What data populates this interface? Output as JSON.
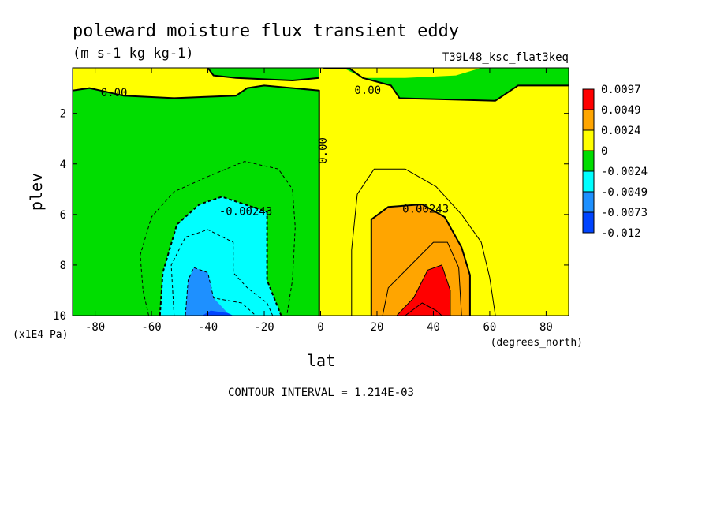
{
  "chart_data": {
    "type": "heatmap",
    "title": "poleward moisture flux transient eddy",
    "units": "(m s-1 kg kg-1)",
    "run_id": "T39L48_ksc_flat3keq",
    "xlabel": "lat",
    "x_units": "(degrees_north)",
    "ylabel": "plev",
    "y_units": "(x1E4 Pa)",
    "xlim": [
      -88,
      88
    ],
    "ylim": [
      10,
      0.2
    ],
    "x_ticks": [
      "-80",
      "-60",
      "-40",
      "-20",
      "0",
      "20",
      "40",
      "60",
      "80"
    ],
    "x_tick_values": [
      -80,
      -60,
      -40,
      -20,
      0,
      20,
      40,
      60,
      80
    ],
    "y_ticks": [
      "2",
      "4",
      "6",
      "8",
      "10"
    ],
    "y_tick_values": [
      2,
      4,
      6,
      8,
      10
    ],
    "contour_interval_text": "CONTOUR INTERVAL = 1.214E-03",
    "contour_labels": [
      {
        "text": "0.00",
        "lat": -78,
        "plev": 1.2
      },
      {
        "text": "0.00",
        "lat": 12,
        "plev": 1.1
      },
      {
        "text": "0.00",
        "lat": 1,
        "plev": 4.0,
        "rotate": true
      },
      {
        "text": "-0.00243",
        "lat": -36,
        "plev": 5.9
      },
      {
        "text": "0.00243",
        "lat": 29,
        "plev": 5.8
      }
    ],
    "colorbar": [
      {
        "label": "0.0097",
        "color": "#ff0000"
      },
      {
        "label": "0.0049",
        "color": "#ffa500"
      },
      {
        "label": "0.0024",
        "color": "#ffff00"
      },
      {
        "label": "0",
        "color": "#00dd00"
      },
      {
        "label": "-0.0024",
        "color": "#00ffff"
      },
      {
        "label": "-0.0049",
        "color": "#1e90ff"
      },
      {
        "label": "-0.0073",
        "color": "#0044ff"
      },
      {
        "label": "-0.012",
        "color": null
      }
    ],
    "regions": [
      {
        "name": "yellow-top-left",
        "color": "#ffff00",
        "poly": [
          [
            -88,
            0.2
          ],
          [
            -40,
            0.2
          ],
          [
            -38,
            0.5
          ],
          [
            -30,
            0.6
          ],
          [
            -10,
            0.7
          ],
          [
            -0.5,
            0.6
          ],
          [
            -0.5,
            1.1
          ],
          [
            -10,
            1.0
          ],
          [
            -20,
            0.9
          ],
          [
            -26,
            1.0
          ],
          [
            -30,
            1.3
          ],
          [
            -52,
            1.4
          ],
          [
            -70,
            1.3
          ],
          [
            -82,
            1.0
          ],
          [
            -88,
            1.1
          ]
        ]
      },
      {
        "name": "green-south",
        "color": "#00dd00",
        "poly": [
          [
            -88,
            1.1
          ],
          [
            -82,
            1.0
          ],
          [
            -70,
            1.3
          ],
          [
            -52,
            1.4
          ],
          [
            -30,
            1.3
          ],
          [
            -26,
            1.0
          ],
          [
            -20,
            0.9
          ],
          [
            -10,
            1.0
          ],
          [
            -0.5,
            1.1
          ],
          [
            -0.5,
            10
          ],
          [
            -88,
            10
          ]
        ]
      },
      {
        "name": "green-top-middle",
        "color": "#00dd00",
        "poly": [
          [
            -40,
            0.2
          ],
          [
            -0.5,
            0.2
          ],
          [
            -0.5,
            0.6
          ],
          [
            -10,
            0.7
          ],
          [
            -30,
            0.6
          ],
          [
            -38,
            0.5
          ]
        ]
      },
      {
        "name": "yellow-north",
        "color": "#ffff00",
        "poly": [
          [
            -0.5,
            0.2
          ],
          [
            88,
            0.2
          ],
          [
            88,
            10
          ],
          [
            -0.5,
            10
          ]
        ]
      },
      {
        "name": "green-top-north",
        "color": "#00dd00",
        "poly": [
          [
            1,
            0.2
          ],
          [
            10,
            0.2
          ],
          [
            15,
            0.6
          ],
          [
            25,
            0.9
          ],
          [
            28,
            1.4
          ],
          [
            62,
            1.5
          ],
          [
            70,
            0.9
          ],
          [
            88,
            0.9
          ],
          [
            88,
            0.2
          ],
          [
            57,
            0.2
          ],
          [
            48,
            0.5
          ],
          [
            30,
            0.6
          ],
          [
            15,
            0.6
          ],
          [
            8,
            0.2
          ]
        ]
      },
      {
        "name": "cyan-south",
        "color": "#00ffff",
        "poly": [
          [
            -57,
            10
          ],
          [
            -56,
            8.3
          ],
          [
            -51,
            6.4
          ],
          [
            -43,
            5.6
          ],
          [
            -35,
            5.3
          ],
          [
            -19,
            5.9
          ],
          [
            -19,
            8.6
          ],
          [
            -14,
            10
          ]
        ]
      },
      {
        "name": "blue-south",
        "color": "#1e90ff",
        "poly": [
          [
            -48,
            10
          ],
          [
            -47,
            8.6
          ],
          [
            -45,
            8.1
          ],
          [
            -40,
            8.3
          ],
          [
            -38,
            9.3
          ],
          [
            -33,
            9.9
          ],
          [
            -31,
            10
          ]
        ]
      },
      {
        "name": "darkblue-south",
        "color": "#0044ff",
        "poly": [
          [
            -42,
            10
          ],
          [
            -39,
            9.8
          ],
          [
            -33,
            9.9
          ],
          [
            -31,
            10
          ]
        ]
      },
      {
        "name": "orange-north",
        "color": "#ffa500",
        "poly": [
          [
            18,
            10
          ],
          [
            18,
            6.2
          ],
          [
            24,
            5.7
          ],
          [
            36,
            5.6
          ],
          [
            44,
            6.1
          ],
          [
            50,
            7.3
          ],
          [
            53,
            8.4
          ],
          [
            53,
            10
          ]
        ]
      },
      {
        "name": "red-north",
        "color": "#ff0000",
        "poly": [
          [
            27,
            10
          ],
          [
            33,
            9.3
          ],
          [
            38,
            8.2
          ],
          [
            43,
            8.0
          ],
          [
            46,
            9.0
          ],
          [
            46,
            10
          ]
        ]
      }
    ],
    "lines": [
      {
        "dashed": false,
        "width": 2,
        "pts": [
          [
            -88,
            1.1
          ],
          [
            -82,
            1.0
          ],
          [
            -70,
            1.3
          ],
          [
            -52,
            1.4
          ],
          [
            -30,
            1.3
          ],
          [
            -26,
            1.0
          ],
          [
            -20,
            0.9
          ],
          [
            -10,
            1.0
          ],
          [
            -0.5,
            1.1
          ],
          [
            -0.5,
            10
          ]
        ]
      },
      {
        "dashed": false,
        "width": 2,
        "pts": [
          [
            1,
            0.2
          ],
          [
            10,
            0.2
          ],
          [
            15,
            0.6
          ],
          [
            25,
            0.9
          ],
          [
            28,
            1.4
          ],
          [
            62,
            1.5
          ],
          [
            70,
            0.9
          ],
          [
            88,
            0.9
          ]
        ]
      },
      {
        "dashed": false,
        "width": 2,
        "pts": [
          [
            -40,
            0.2
          ],
          [
            -38,
            0.5
          ],
          [
            -30,
            0.6
          ],
          [
            -10,
            0.7
          ],
          [
            -0.5,
            0.6
          ]
        ]
      },
      {
        "dashed": true,
        "width": 1,
        "pts": [
          [
            -61,
            10
          ],
          [
            -63,
            9.0
          ],
          [
            -64,
            7.6
          ],
          [
            -60,
            6.1
          ],
          [
            -52,
            5.1
          ],
          [
            -40,
            4.5
          ],
          [
            -27,
            3.9
          ],
          [
            -15,
            4.2
          ],
          [
            -10,
            5.0
          ],
          [
            -9,
            6.5
          ],
          [
            -10,
            8.6
          ],
          [
            -12,
            10
          ]
        ]
      },
      {
        "dashed": true,
        "width": 2,
        "pts": [
          [
            -57,
            10
          ],
          [
            -56,
            8.3
          ],
          [
            -51,
            6.4
          ],
          [
            -43,
            5.6
          ],
          [
            -35,
            5.3
          ],
          [
            -19,
            5.9
          ],
          [
            -19,
            8.6
          ],
          [
            -14,
            10
          ]
        ]
      },
      {
        "dashed": true,
        "width": 1,
        "pts": [
          [
            -52,
            10
          ],
          [
            -53,
            8.0
          ],
          [
            -48,
            6.9
          ],
          [
            -40,
            6.6
          ],
          [
            -31,
            7.1
          ],
          [
            -31,
            8.3
          ],
          [
            -26,
            8.9
          ],
          [
            -19,
            9.5
          ],
          [
            -17,
            10
          ]
        ]
      },
      {
        "dashed": true,
        "width": 1,
        "pts": [
          [
            -48,
            10
          ],
          [
            -47,
            8.6
          ],
          [
            -45,
            8.1
          ],
          [
            -40,
            8.3
          ],
          [
            -38,
            9.3
          ],
          [
            -28,
            9.5
          ],
          [
            -23,
            10
          ]
        ]
      },
      {
        "dashed": false,
        "width": 1,
        "pts": [
          [
            11,
            10
          ],
          [
            11,
            7.4
          ],
          [
            13,
            5.2
          ],
          [
            19,
            4.2
          ],
          [
            30,
            4.2
          ],
          [
            41,
            4.9
          ],
          [
            50,
            6.0
          ],
          [
            57,
            7.1
          ],
          [
            60,
            8.5
          ],
          [
            62,
            10
          ]
        ]
      },
      {
        "dashed": false,
        "width": 2,
        "pts": [
          [
            18,
            10
          ],
          [
            18,
            6.2
          ],
          [
            24,
            5.7
          ],
          [
            36,
            5.6
          ],
          [
            44,
            6.1
          ],
          [
            50,
            7.3
          ],
          [
            53,
            8.4
          ],
          [
            53,
            10
          ]
        ]
      },
      {
        "dashed": false,
        "width": 1,
        "pts": [
          [
            22,
            10
          ],
          [
            24,
            8.9
          ],
          [
            32,
            8.0
          ],
          [
            40,
            7.1
          ],
          [
            45,
            7.1
          ],
          [
            49,
            8.1
          ],
          [
            50,
            10
          ]
        ]
      },
      {
        "dashed": false,
        "width": 1,
        "pts": [
          [
            27,
            10
          ],
          [
            33,
            9.3
          ],
          [
            38,
            8.2
          ],
          [
            43,
            8.0
          ],
          [
            46,
            9.0
          ],
          [
            46,
            10
          ]
        ]
      },
      {
        "dashed": false,
        "width": 1,
        "pts": [
          [
            30,
            10
          ],
          [
            36,
            9.5
          ],
          [
            41,
            9.8
          ],
          [
            43,
            10
          ]
        ]
      }
    ]
  }
}
